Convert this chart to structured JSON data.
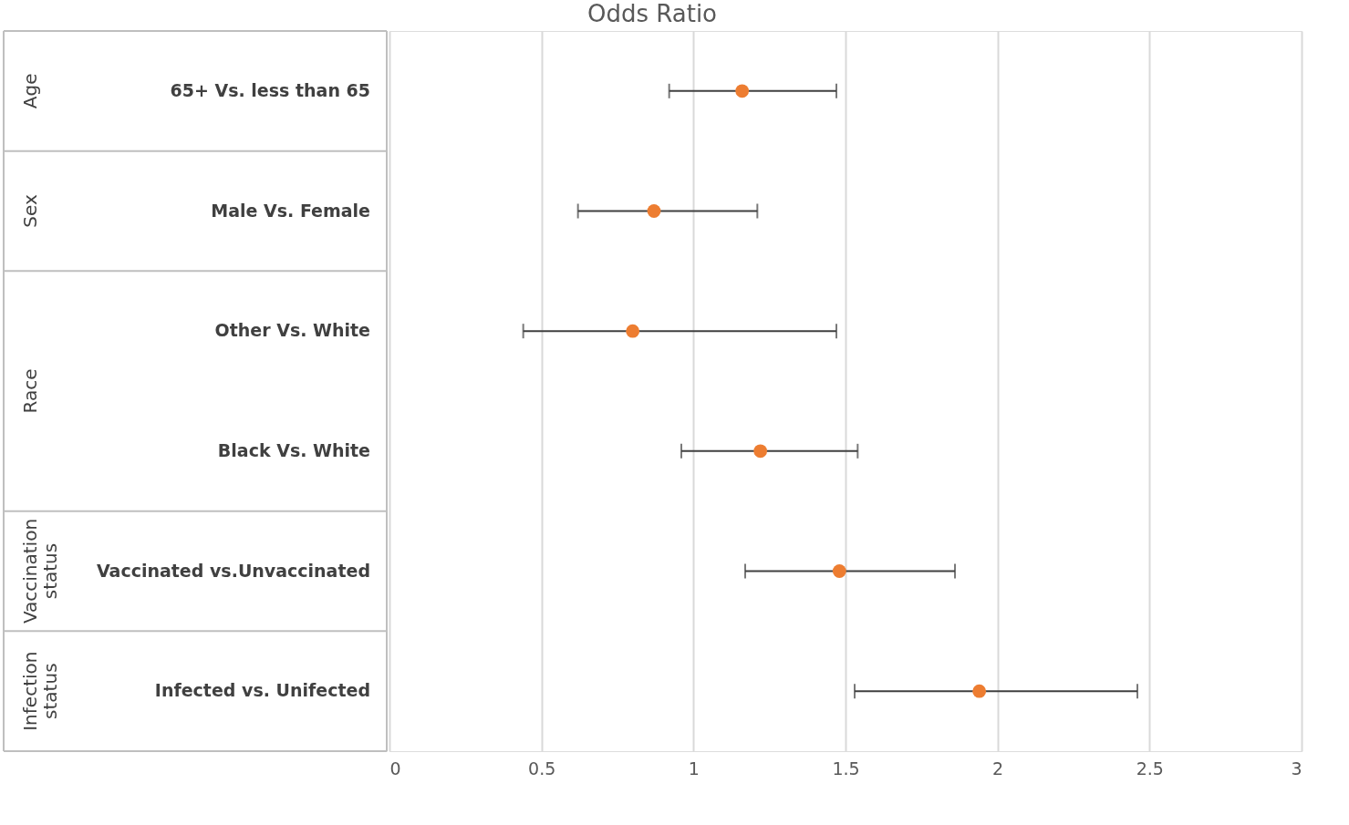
{
  "chart_data": {
    "type": "scatter",
    "title": "Odds Ratio",
    "categories": [
      "65+ Vs. less than 65",
      "Male Vs. Female",
      "Other Vs. White",
      "Black Vs. White",
      "Vaccinated vs.Unvaccinated",
      "Infected vs. Unifected"
    ],
    "series": [
      {
        "color": "#ed7d31",
        "values": [
          1.16,
          0.87,
          0.8,
          1.22,
          1.48,
          1.94
        ],
        "errors": [
          [
            0.92,
            1.47
          ],
          [
            0.62,
            1.21
          ],
          [
            0.44,
            1.47
          ],
          [
            0.96,
            1.54
          ],
          [
            1.17,
            1.86
          ],
          [
            1.53,
            2.46
          ]
        ]
      }
    ],
    "orientation": "horizontal",
    "annotations": [
      "Age",
      "Sex",
      "Race",
      "Vaccination status",
      "Infection status"
    ],
    "xlim": [
      0,
      3
    ],
    "xticks": [
      0,
      0.5,
      1,
      1.5,
      2,
      2.5,
      3
    ],
    "grid": "x",
    "marker": "circle"
  }
}
